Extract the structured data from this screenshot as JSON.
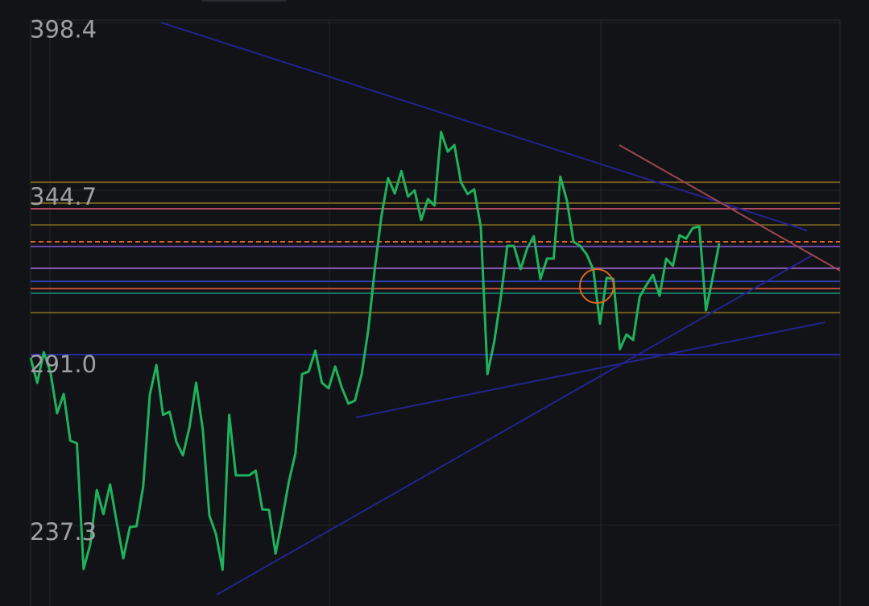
{
  "chart_data": {
    "type": "line",
    "ylim": [
      211.41,
      405.73
    ],
    "yticks": [
      {
        "value": 398.4,
        "label": "398.4"
      },
      {
        "value": 344.7,
        "label": "344.7"
      },
      {
        "value": 291.0,
        "label": "291.0"
      },
      {
        "value": 237.3,
        "label": "237.3"
      }
    ],
    "grid": true,
    "series": [
      {
        "color": "#1fb25c",
        "values": [
          291.0,
          283.0,
          292.8,
          286.3,
          273.2,
          279.4,
          264.4,
          263.6,
          223.3,
          231.1,
          248.6,
          240.9,
          250.4,
          238.3,
          226.7,
          236.7,
          237.0,
          249.7,
          279.1,
          288.7,
          272.7,
          273.7,
          264.1,
          259.7,
          268.8,
          283.0,
          268.0,
          240.4,
          234.4,
          223.0,
          272.7,
          253.3,
          253.3,
          253.3,
          254.8,
          242.4,
          242.2,
          228.2,
          239.3,
          251.2,
          260.3,
          285.8,
          286.6,
          293.3,
          283.0,
          281.2,
          288.2,
          281.4,
          276.3,
          277.3,
          285.8,
          300.0,
          319.9,
          336.5,
          348.6,
          343.7,
          350.9,
          342.7,
          344.7,
          335.2,
          341.9,
          339.8,
          363.4,
          357.1,
          359.2,
          347.3,
          343.5,
          345.0,
          332.9,
          285.8,
          295.9,
          310.1,
          326.9,
          326.9,
          319.4,
          326.1,
          330.0,
          316.3,
          322.8,
          322.8,
          349.1,
          341.4,
          328.2,
          326.9,
          324.1,
          319.2,
          301.9,
          316.6,
          316.3,
          293.8,
          298.5,
          296.7,
          310.6,
          314.3,
          317.6,
          310.9,
          322.8,
          320.5,
          330.3,
          329.2,
          332.6,
          333.1,
          306.2,
          316.6,
          327.7
        ]
      }
    ],
    "levels": [
      {
        "value": 347.3,
        "color": "#6e5a1c"
      },
      {
        "value": 340.6,
        "color": "#6e5a1c"
      },
      {
        "value": 338.8,
        "color": "#b04a5e"
      },
      {
        "value": 333.6,
        "color": "#6e5a1c"
      },
      {
        "value": 328.2,
        "color": "#e2641c",
        "dashed": true
      },
      {
        "value": 326.7,
        "color": "#6a48b0"
      },
      {
        "value": 319.7,
        "color": "#8c5ab4"
      },
      {
        "value": 315.5,
        "color": "#2e3ea6"
      },
      {
        "value": 313.2,
        "color": "#c0503a"
      },
      {
        "value": 311.7,
        "color": "#1a7a6a"
      },
      {
        "value": 305.5,
        "color": "#6e5a1c"
      },
      {
        "value": 292.0,
        "color": "#2a2aa8"
      }
    ]
  }
}
